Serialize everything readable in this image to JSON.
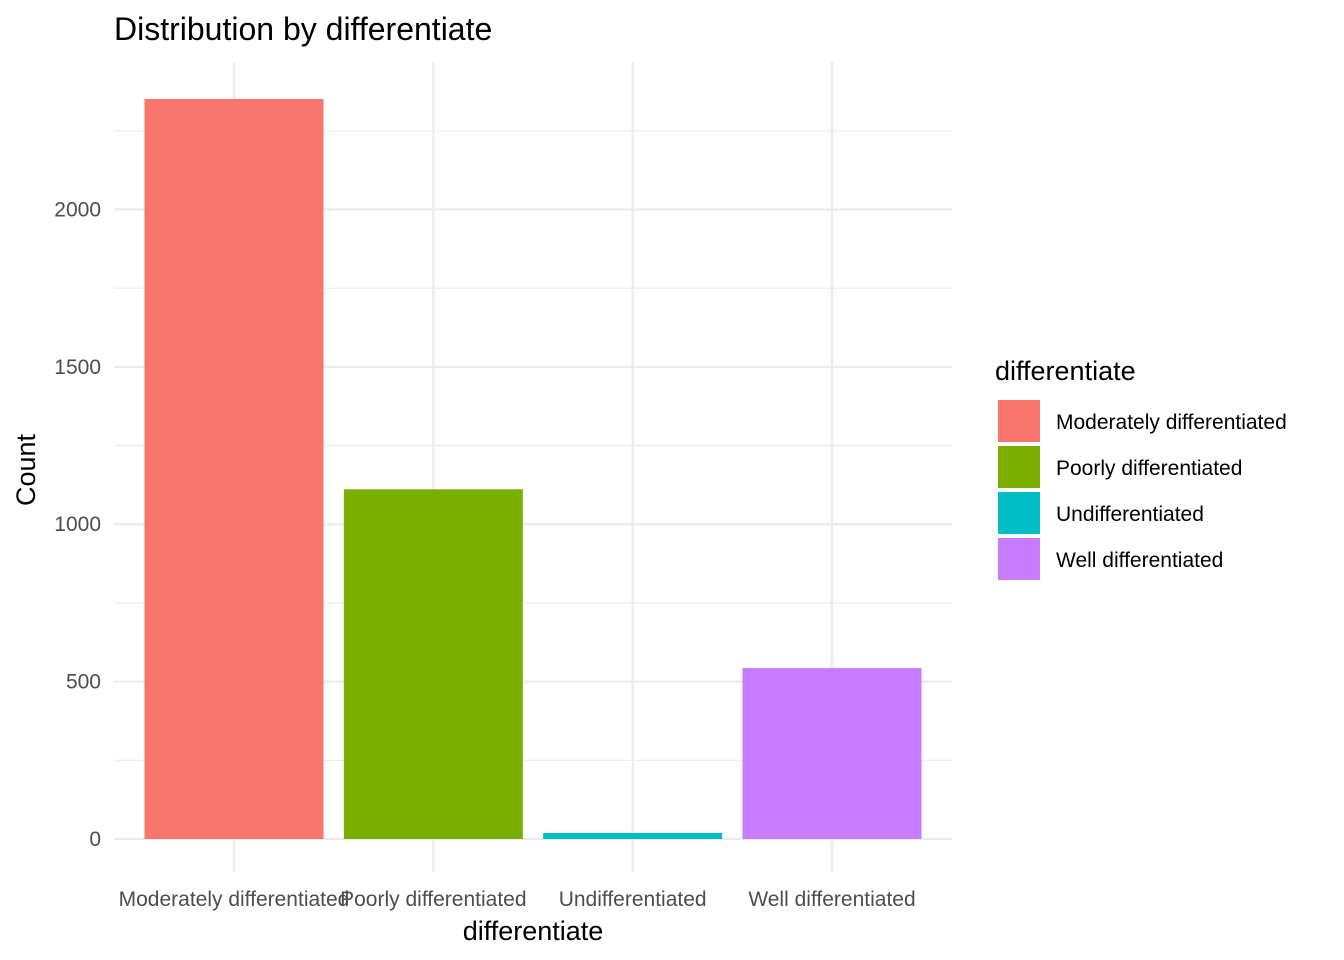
{
  "chart_data": {
    "type": "bar",
    "title": "Distribution by differentiate",
    "xlabel": "differentiate",
    "ylabel": "Count",
    "categories": [
      "Moderately differentiated",
      "Poorly differentiated",
      "Undifferentiated",
      "Well differentiated"
    ],
    "values": [
      2351,
      1111,
      19,
      543
    ],
    "colors": [
      "#F8766D",
      "#7CAE00",
      "#00BFC4",
      "#C77CFF"
    ],
    "ylim": [
      0,
      2351
    ],
    "yticks": [
      "0",
      "500",
      "1000",
      "1500",
      "2000"
    ],
    "grid": true,
    "legend": {
      "title": "differentiate",
      "position": "right",
      "entries": [
        "Moderately differentiated",
        "Poorly differentiated",
        "Undifferentiated",
        "Well differentiated"
      ]
    }
  }
}
